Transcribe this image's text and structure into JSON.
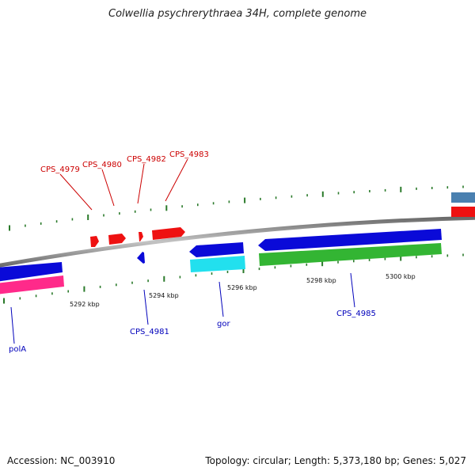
{
  "title": "Colwellia psychrerythraea 34H, complete genome",
  "footer": {
    "accession": "Accession: NC_003910",
    "summary": "Topology: circular; Length: 5,373,180 bp; Genes: 5,027"
  },
  "colors": {
    "backbone": "#8a8a8a",
    "forward_gene": "#ee1111",
    "reverse_gene": "#0a0ad8",
    "rrna": "#ff2a8a",
    "trna": "#22e0ee",
    "other": "#33b533",
    "steelblue": "#4a80b0",
    "tick": "#2a7a2a",
    "forward_label": "#cc0000",
    "reverse_label": "#0000bb"
  },
  "scale": {
    "labels": [
      "5292 kbp",
      "5294 kbp",
      "5296 kbp",
      "5298 kbp",
      "5300 kbp"
    ]
  },
  "forward_labels": [
    {
      "id": "cps4979",
      "text": "CPS_4979"
    },
    {
      "id": "cps4980",
      "text": "CPS_4980"
    },
    {
      "id": "cps4982",
      "text": "CPS_4982"
    },
    {
      "id": "cps4983",
      "text": "CPS_4983"
    }
  ],
  "reverse_labels": [
    {
      "id": "pola",
      "text": "polA"
    },
    {
      "id": "cps4981",
      "text": "CPS_4981"
    },
    {
      "id": "gor",
      "text": "gor"
    },
    {
      "id": "cps4985",
      "text": "CPS_4985"
    }
  ]
}
